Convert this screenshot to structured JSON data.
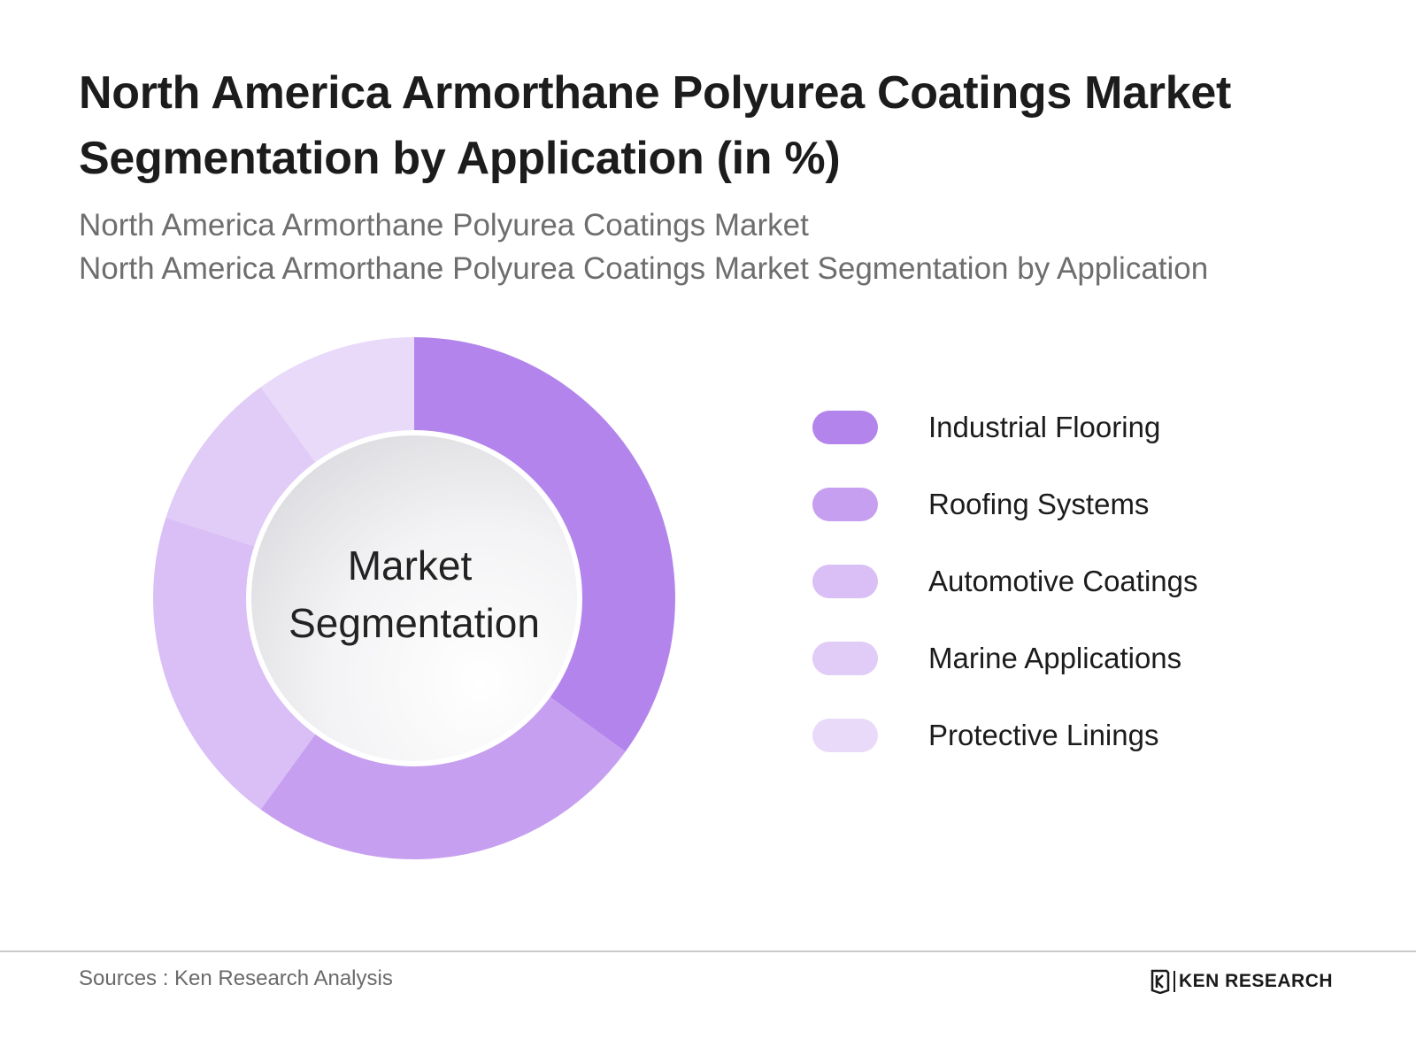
{
  "header": {
    "title": "North America Armorthane Polyurea Coatings Market Segmentation by Application (in %)",
    "subtitle_line1": "North America Armorthane Polyurea Coatings Market",
    "subtitle_line2": "North America Armorthane Polyurea Coatings Market Segmentation by Application"
  },
  "chart_data": {
    "type": "pie",
    "variant": "donut",
    "center_label": [
      "Market",
      "Segmentation"
    ],
    "categories": [
      "Industrial Flooring",
      "Roofing Systems",
      "Automotive Coatings",
      "Marine Applications",
      "Protective Linings"
    ],
    "values": [
      35,
      25,
      20,
      10,
      10
    ],
    "colors": [
      "#b385ec",
      "#c79ff0",
      "#d9bff6",
      "#e1cbf7",
      "#e9daf9"
    ],
    "legend_position": "right",
    "start": "12 o'clock, clockwise"
  },
  "footer": {
    "sources": "Sources : Ken Research Analysis",
    "brand": "KEN RESEARCH",
    "brand_logo": "ken-research-logo"
  }
}
